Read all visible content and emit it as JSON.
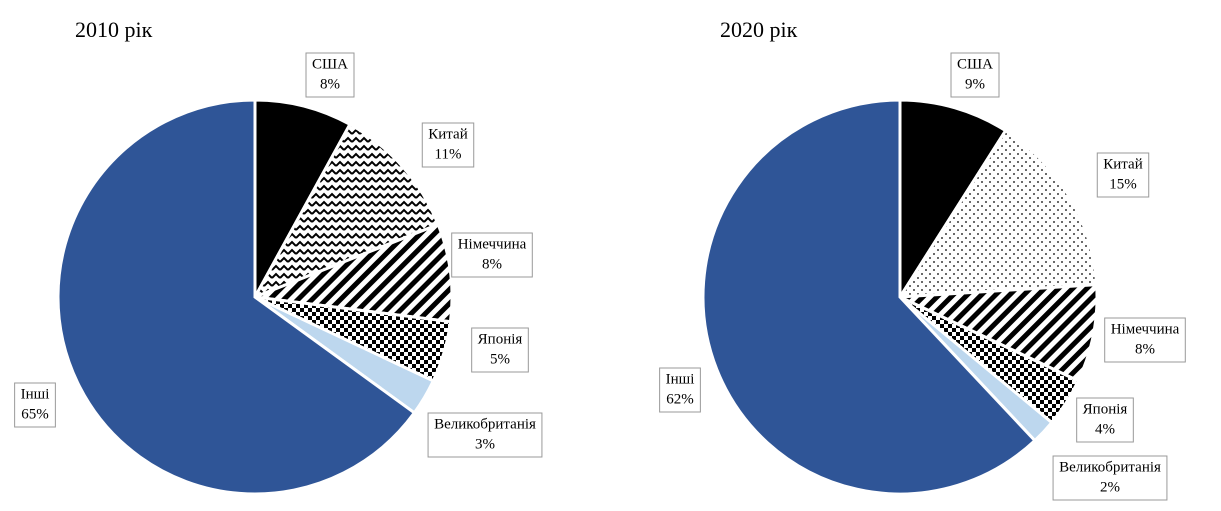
{
  "chart_data": [
    {
      "type": "pie",
      "title": "2010 рік",
      "categories": [
        "США",
        "Китай",
        "Німеччина",
        "Японія",
        "Великобританія",
        "Інші"
      ],
      "values": [
        8,
        11,
        8,
        5,
        3,
        65
      ],
      "value_labels": [
        "8%",
        "11%",
        "8%",
        "5%",
        "3%",
        "65%"
      ],
      "colors": [
        "#000000",
        "#000000",
        "#000000",
        "#000000",
        "#bdd7ee",
        "#2f5597"
      ]
    },
    {
      "type": "pie",
      "title": "2020 рік",
      "categories": [
        "США",
        "Китай",
        "Німеччина",
        "Японія",
        "Великобританія",
        "Інші"
      ],
      "values": [
        9,
        15,
        8,
        4,
        2,
        62
      ],
      "value_labels": [
        "9%",
        "15%",
        "8%",
        "4%",
        "2%",
        "62%"
      ],
      "colors": [
        "#000000",
        "#000000",
        "#000000",
        "#000000",
        "#bdd7ee",
        "#2f5597"
      ]
    }
  ]
}
